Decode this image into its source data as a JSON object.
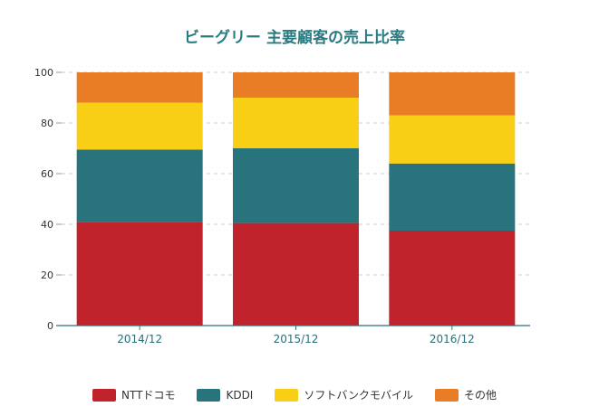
{
  "chart_data": {
    "type": "bar",
    "stacked": true,
    "title": "ビーグリー 主要顧客の売上比率",
    "categories": [
      "2014/12",
      "2015/12",
      "2016/12"
    ],
    "ylim": [
      0,
      100
    ],
    "yticks": [
      0,
      20,
      40,
      60,
      80,
      100
    ],
    "grid": true,
    "legend_position": "bottom",
    "series": [
      {
        "name": "NTTドコモ",
        "color": "#c0232b",
        "values": [
          41,
          40.5,
          37.5
        ]
      },
      {
        "name": "KDDI",
        "color": "#28737c",
        "values": [
          28.5,
          29.5,
          26.5
        ]
      },
      {
        "name": "ソフトバンクモバイル",
        "color": "#f9cf16",
        "values": [
          18.5,
          20,
          19
        ]
      },
      {
        "name": "その他",
        "color": "#e87d26",
        "values": [
          12,
          10,
          17
        ]
      }
    ]
  }
}
